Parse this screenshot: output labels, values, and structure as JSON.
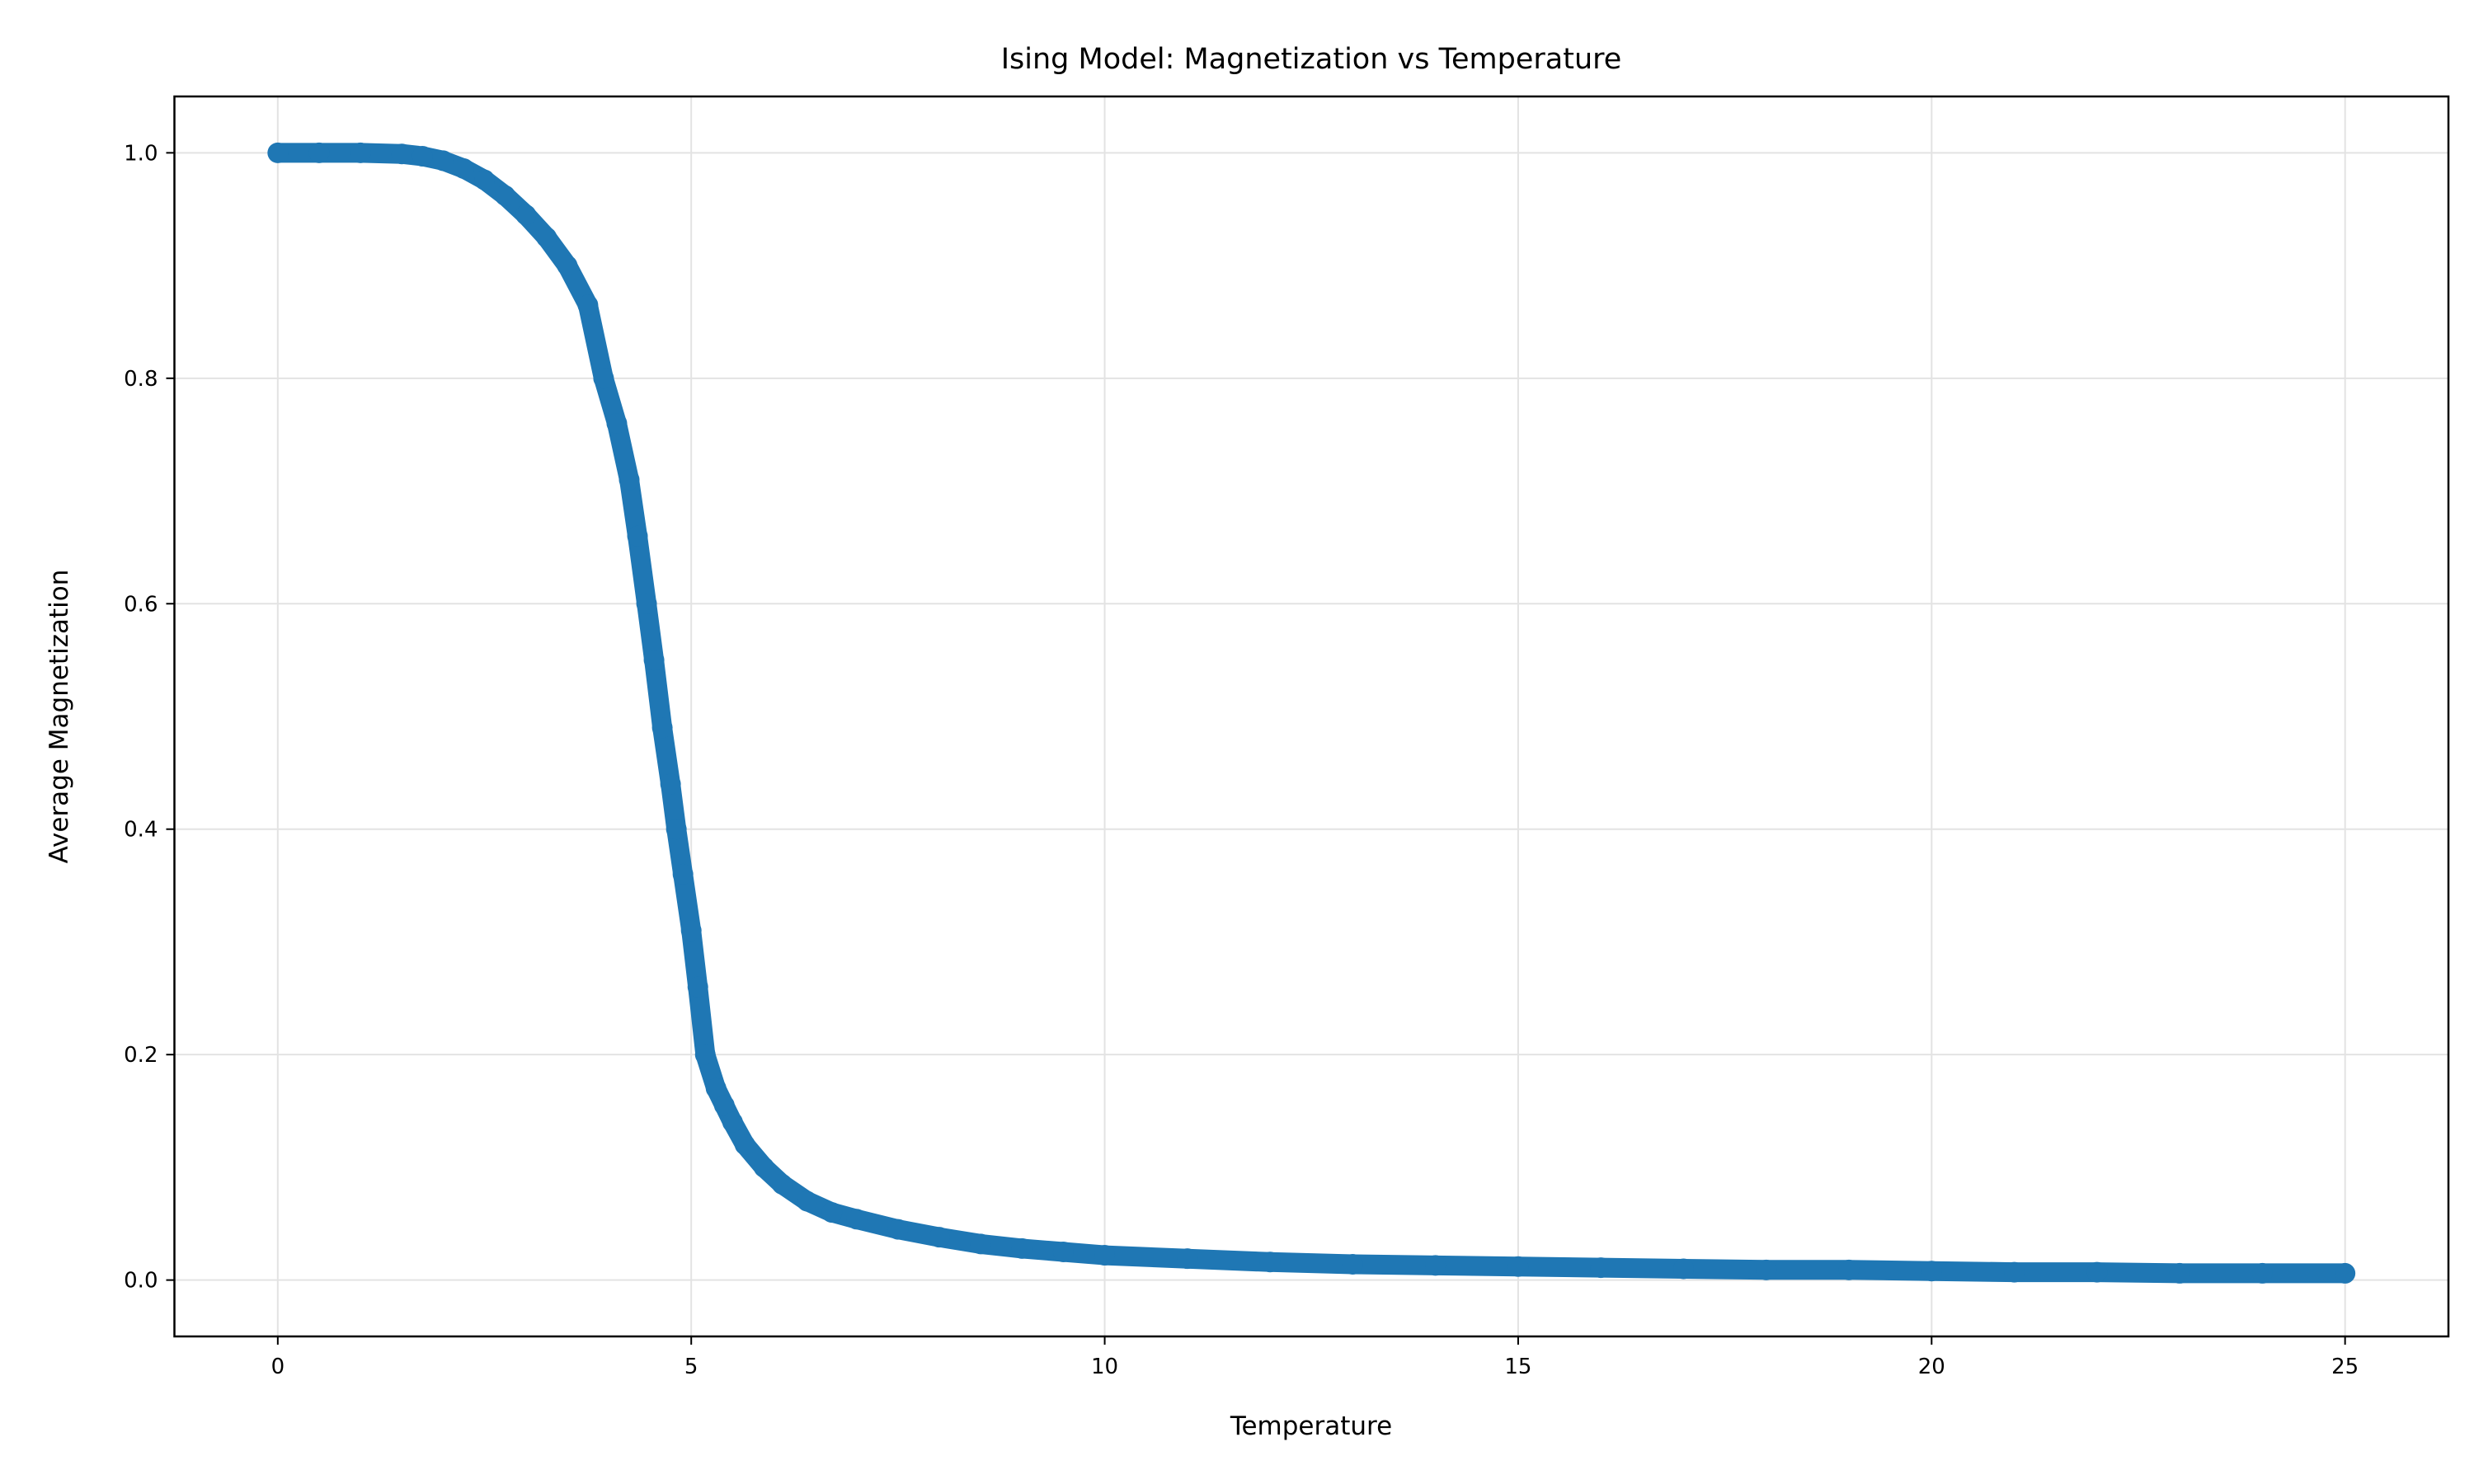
{
  "chart_data": {
    "type": "scatter",
    "title": "Ising Model: Magnetization vs Temperature",
    "xlabel": "Temperature",
    "ylabel": "Average Magnetization",
    "xlim": [
      -1.25,
      26.25
    ],
    "ylim": [
      -0.05,
      1.05
    ],
    "xticks": [
      0,
      5,
      10,
      15,
      20,
      25
    ],
    "xtick_labels": [
      "0",
      "5",
      "10",
      "15",
      "20",
      "25"
    ],
    "yticks": [
      0.0,
      0.2,
      0.4,
      0.6,
      0.8,
      1.0
    ],
    "ytick_labels": [
      "0.0",
      "0.2",
      "0.4",
      "0.6",
      "0.8",
      "1.0"
    ],
    "grid": true,
    "color": "#1f77b4",
    "series": [
      {
        "x": [
          0,
          0.5,
          1.0,
          1.5,
          1.75,
          2.0,
          2.25,
          2.5,
          2.75,
          3.0,
          3.25,
          3.5,
          3.75,
          3.94,
          4.1,
          4.25,
          4.35,
          4.46,
          4.55,
          4.65,
          4.75,
          4.82,
          4.9,
          5.0,
          5.08,
          5.17,
          5.3,
          5.4,
          5.5,
          5.65,
          5.88,
          6.1,
          6.4,
          6.7,
          7.0,
          7.5,
          8.0,
          8.5,
          9.0,
          9.5,
          10.0,
          11.0,
          12.0,
          13.0,
          14.0,
          15.0,
          16.0,
          17.0,
          18.0,
          19.0,
          20.0,
          21.0,
          22.0,
          23.0,
          24.0,
          25.0
        ],
        "y": [
          1.0,
          1.0,
          1.0,
          0.999,
          0.997,
          0.993,
          0.986,
          0.976,
          0.962,
          0.945,
          0.925,
          0.9,
          0.865,
          0.8,
          0.76,
          0.71,
          0.66,
          0.6,
          0.55,
          0.49,
          0.44,
          0.4,
          0.36,
          0.31,
          0.26,
          0.2,
          0.17,
          0.155,
          0.14,
          0.12,
          0.1,
          0.085,
          0.07,
          0.06,
          0.054,
          0.045,
          0.038,
          0.032,
          0.028,
          0.025,
          0.022,
          0.019,
          0.016,
          0.014,
          0.013,
          0.012,
          0.011,
          0.01,
          0.009,
          0.009,
          0.008,
          0.007,
          0.007,
          0.006,
          0.006,
          0.006
        ]
      }
    ]
  }
}
